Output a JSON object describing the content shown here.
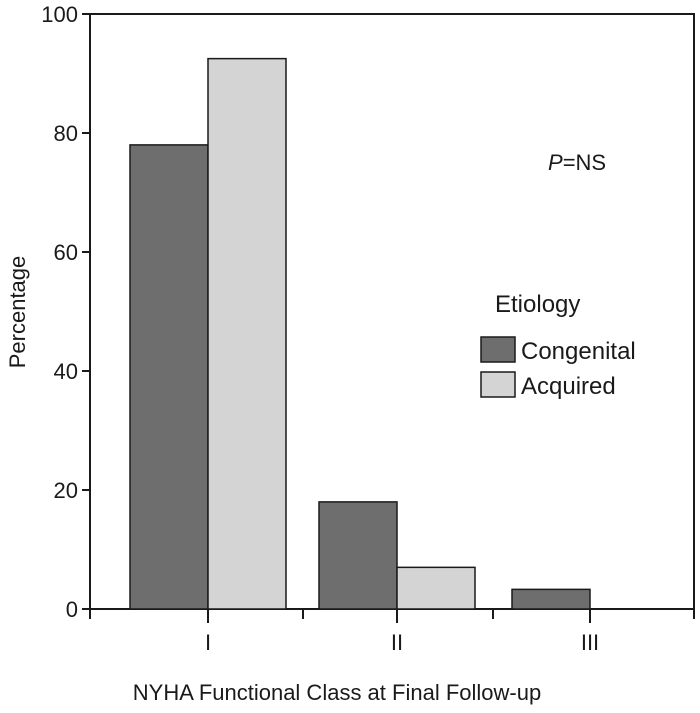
{
  "chart_data": {
    "type": "bar",
    "xlabel": "NYHA Functional Class at Final Follow-up",
    "ylabel": "Percentage",
    "ylim": [
      0,
      100
    ],
    "yticks": [
      0,
      20,
      40,
      60,
      80,
      100
    ],
    "categories": [
      "I",
      "II",
      "III"
    ],
    "series": [
      {
        "name": "Congenital",
        "values": [
          78,
          18,
          3.3
        ],
        "color": "#6e6e6e"
      },
      {
        "name": "Acquired",
        "values": [
          92.5,
          7,
          0
        ],
        "color": "#d4d4d4"
      }
    ],
    "legend": {
      "title": "Etiology",
      "position": "right"
    },
    "annotation": {
      "italic": "P",
      "rest": "=NS"
    },
    "grid": false
  }
}
